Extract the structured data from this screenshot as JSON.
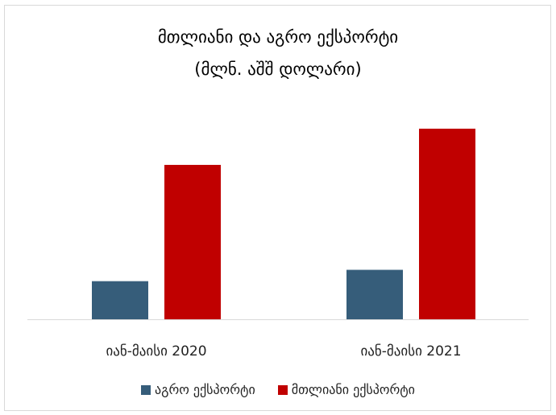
{
  "chart_data": {
    "type": "bar",
    "title_line1": "მთლიანი და აგრო ექსპორტი",
    "title_line2": "(მლნ. აშშ დოლარი)",
    "categories": [
      "იან-მაისი 2020",
      "იან-მაისი 2021"
    ],
    "series": [
      {
        "name": "აგრო ექსპორტი",
        "color": "#365d7a",
        "values": [
          316,
          410
        ]
      },
      {
        "name": "მთლიანი ექსპორტი",
        "color": "#c00000",
        "values": [
          1280,
          1580
        ]
      }
    ],
    "ylim": [
      0,
      2000
    ],
    "grid": false,
    "legend_position": "bottom",
    "axis_color": "#d9d9d9"
  }
}
